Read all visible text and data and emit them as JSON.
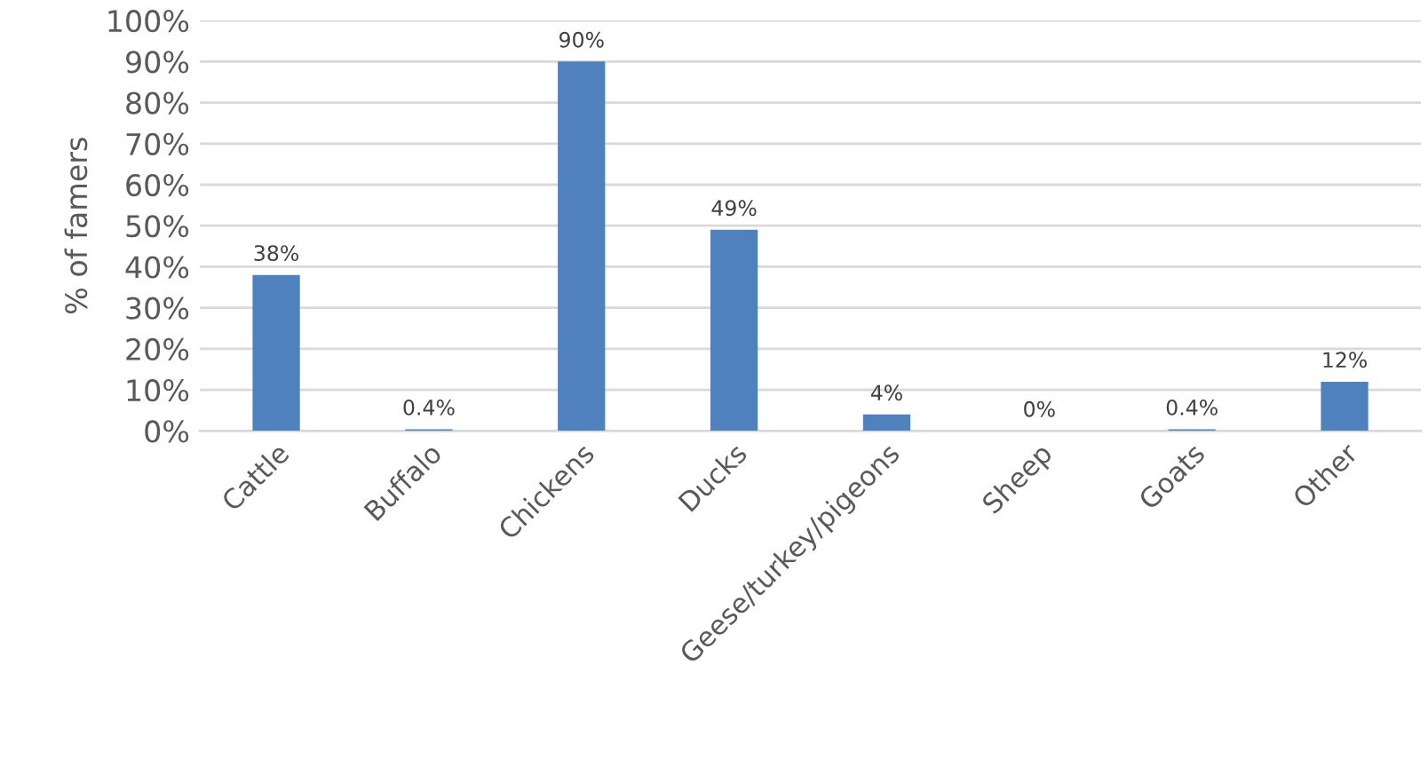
{
  "chart_data": {
    "type": "bar",
    "ylabel": "% of famers",
    "categories": [
      "Cattle",
      "Buffalo",
      "Chickens",
      "Ducks",
      "Geese/turkey/pigeons",
      "Sheep",
      "Goats",
      "Other"
    ],
    "values": [
      38,
      0.4,
      90,
      49,
      4,
      0,
      0.4,
      12
    ],
    "value_labels": [
      "38%",
      "0.4%",
      "90%",
      "49%",
      "4%",
      "0%",
      "0.4%",
      "12%"
    ],
    "color": "#4f81bd",
    "ylim": [
      0,
      100
    ],
    "yticks": [
      {
        "value": 0,
        "label": "0%"
      },
      {
        "value": 10,
        "label": "10%"
      },
      {
        "value": 20,
        "label": "20%"
      },
      {
        "value": 30,
        "label": "30%"
      },
      {
        "value": 40,
        "label": "40%"
      },
      {
        "value": 50,
        "label": "50%"
      },
      {
        "value": 60,
        "label": "60%"
      },
      {
        "value": 70,
        "label": "70%"
      },
      {
        "value": 80,
        "label": "80%"
      },
      {
        "value": 90,
        "label": "90%"
      },
      {
        "value": 100,
        "label": "100%"
      }
    ],
    "grid": "y",
    "legend": false
  }
}
